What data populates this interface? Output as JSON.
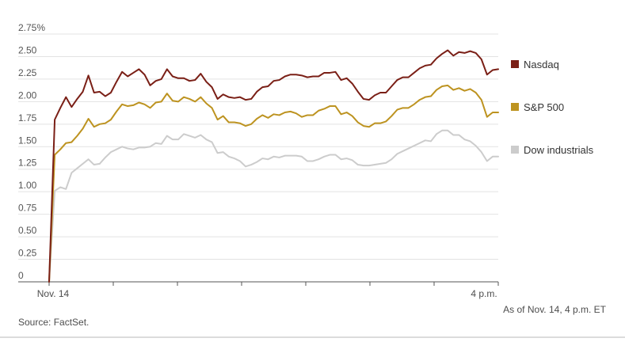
{
  "chart_data": {
    "type": "line",
    "y_ticks": [
      "2.75%",
      "2.50",
      "2.25",
      "2.00",
      "1.75",
      "1.50",
      "1.25",
      "1.00",
      "0.75",
      "0.50",
      "0.25",
      "0"
    ],
    "y_tick_values": [
      2.75,
      2.5,
      2.25,
      2.0,
      1.75,
      1.5,
      1.25,
      1.0,
      0.75,
      0.5,
      0.25,
      0
    ],
    "ylim": [
      0,
      2.75
    ],
    "x_start_label": "Nov. 14",
    "x_end_label": "4 p.m.",
    "grid": true,
    "legend_position": "right",
    "series": [
      {
        "name": "Nasdaq",
        "color": "#7a1f16",
        "values": [
          0,
          1.8,
          1.93,
          2.05,
          1.94,
          2.03,
          2.11,
          2.29,
          2.1,
          2.11,
          2.06,
          2.1,
          2.22,
          2.33,
          2.28,
          2.32,
          2.36,
          2.3,
          2.18,
          2.23,
          2.25,
          2.36,
          2.28,
          2.26,
          2.26,
          2.23,
          2.24,
          2.31,
          2.22,
          2.16,
          2.03,
          2.08,
          2.05,
          2.04,
          2.05,
          2.02,
          2.03,
          2.11,
          2.16,
          2.17,
          2.23,
          2.24,
          2.28,
          2.3,
          2.3,
          2.29,
          2.27,
          2.28,
          2.28,
          2.32,
          2.32,
          2.33,
          2.24,
          2.26,
          2.2,
          2.11,
          2.03,
          2.02,
          2.07,
          2.1,
          2.1,
          2.17,
          2.24,
          2.27,
          2.27,
          2.32,
          2.37,
          2.4,
          2.41,
          2.48,
          2.53,
          2.57,
          2.51,
          2.55,
          2.54,
          2.56,
          2.54,
          2.47,
          2.3,
          2.35,
          2.36
        ]
      },
      {
        "name": "S&P 500",
        "color": "#bd9320",
        "values": [
          0,
          1.41,
          1.47,
          1.54,
          1.55,
          1.62,
          1.7,
          1.81,
          1.72,
          1.75,
          1.76,
          1.8,
          1.89,
          1.97,
          1.95,
          1.96,
          1.99,
          1.97,
          1.93,
          1.99,
          2.0,
          2.09,
          2.01,
          2.0,
          2.05,
          2.03,
          2.0,
          2.05,
          1.98,
          1.93,
          1.8,
          1.84,
          1.77,
          1.77,
          1.76,
          1.73,
          1.75,
          1.81,
          1.85,
          1.82,
          1.86,
          1.85,
          1.88,
          1.89,
          1.87,
          1.83,
          1.85,
          1.85,
          1.9,
          1.92,
          1.95,
          1.95,
          1.86,
          1.88,
          1.84,
          1.77,
          1.73,
          1.72,
          1.76,
          1.76,
          1.78,
          1.84,
          1.91,
          1.93,
          1.93,
          1.97,
          2.02,
          2.05,
          2.06,
          2.13,
          2.17,
          2.18,
          2.13,
          2.15,
          2.12,
          2.14,
          2.1,
          2.02,
          1.83,
          1.88,
          1.88
        ]
      },
      {
        "name": "Dow industrials",
        "color": "#cccccc",
        "values": [
          0,
          1.01,
          1.05,
          1.03,
          1.21,
          1.26,
          1.31,
          1.36,
          1.3,
          1.31,
          1.38,
          1.44,
          1.47,
          1.5,
          1.48,
          1.47,
          1.49,
          1.49,
          1.5,
          1.54,
          1.53,
          1.62,
          1.58,
          1.58,
          1.64,
          1.62,
          1.6,
          1.63,
          1.58,
          1.55,
          1.43,
          1.44,
          1.39,
          1.37,
          1.34,
          1.28,
          1.3,
          1.33,
          1.37,
          1.36,
          1.39,
          1.38,
          1.4,
          1.4,
          1.4,
          1.39,
          1.34,
          1.34,
          1.36,
          1.39,
          1.41,
          1.41,
          1.36,
          1.37,
          1.35,
          1.3,
          1.29,
          1.29,
          1.3,
          1.31,
          1.32,
          1.36,
          1.42,
          1.45,
          1.48,
          1.51,
          1.54,
          1.57,
          1.56,
          1.64,
          1.68,
          1.68,
          1.63,
          1.63,
          1.58,
          1.56,
          1.51,
          1.44,
          1.34,
          1.39,
          1.39
        ]
      }
    ]
  },
  "note": "As of Nov. 14, 4 p.m. ET",
  "source": "Source: FactSet."
}
